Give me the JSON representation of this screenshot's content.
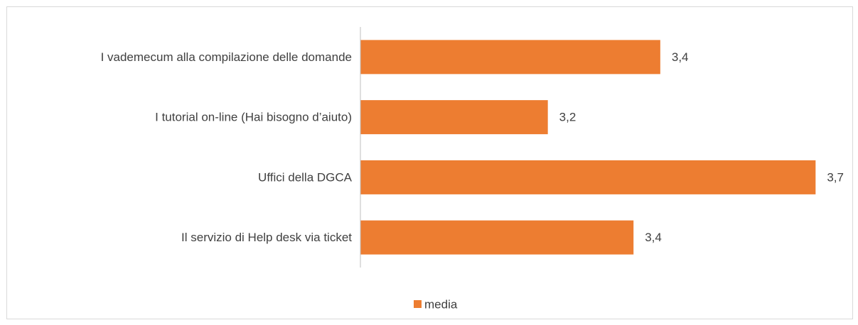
{
  "chart_data": {
    "type": "bar",
    "orientation": "horizontal",
    "categories": [
      "I vademecum alla compilazione delle domande",
      "I tutorial on-line (Hai bisogno d’aiuto)",
      "Uffici della DGCA",
      "Il servizio di Help desk via ticket"
    ],
    "series": [
      {
        "name": "media",
        "color": "#ed7d31",
        "values": [
          3.41,
          3.2,
          3.7,
          3.36
        ],
        "value_labels": [
          "3,4",
          "3,2",
          "3,7",
          "3,4"
        ]
      }
    ],
    "xlim": [
      2.85,
      3.75
    ],
    "legend": "bottom"
  }
}
